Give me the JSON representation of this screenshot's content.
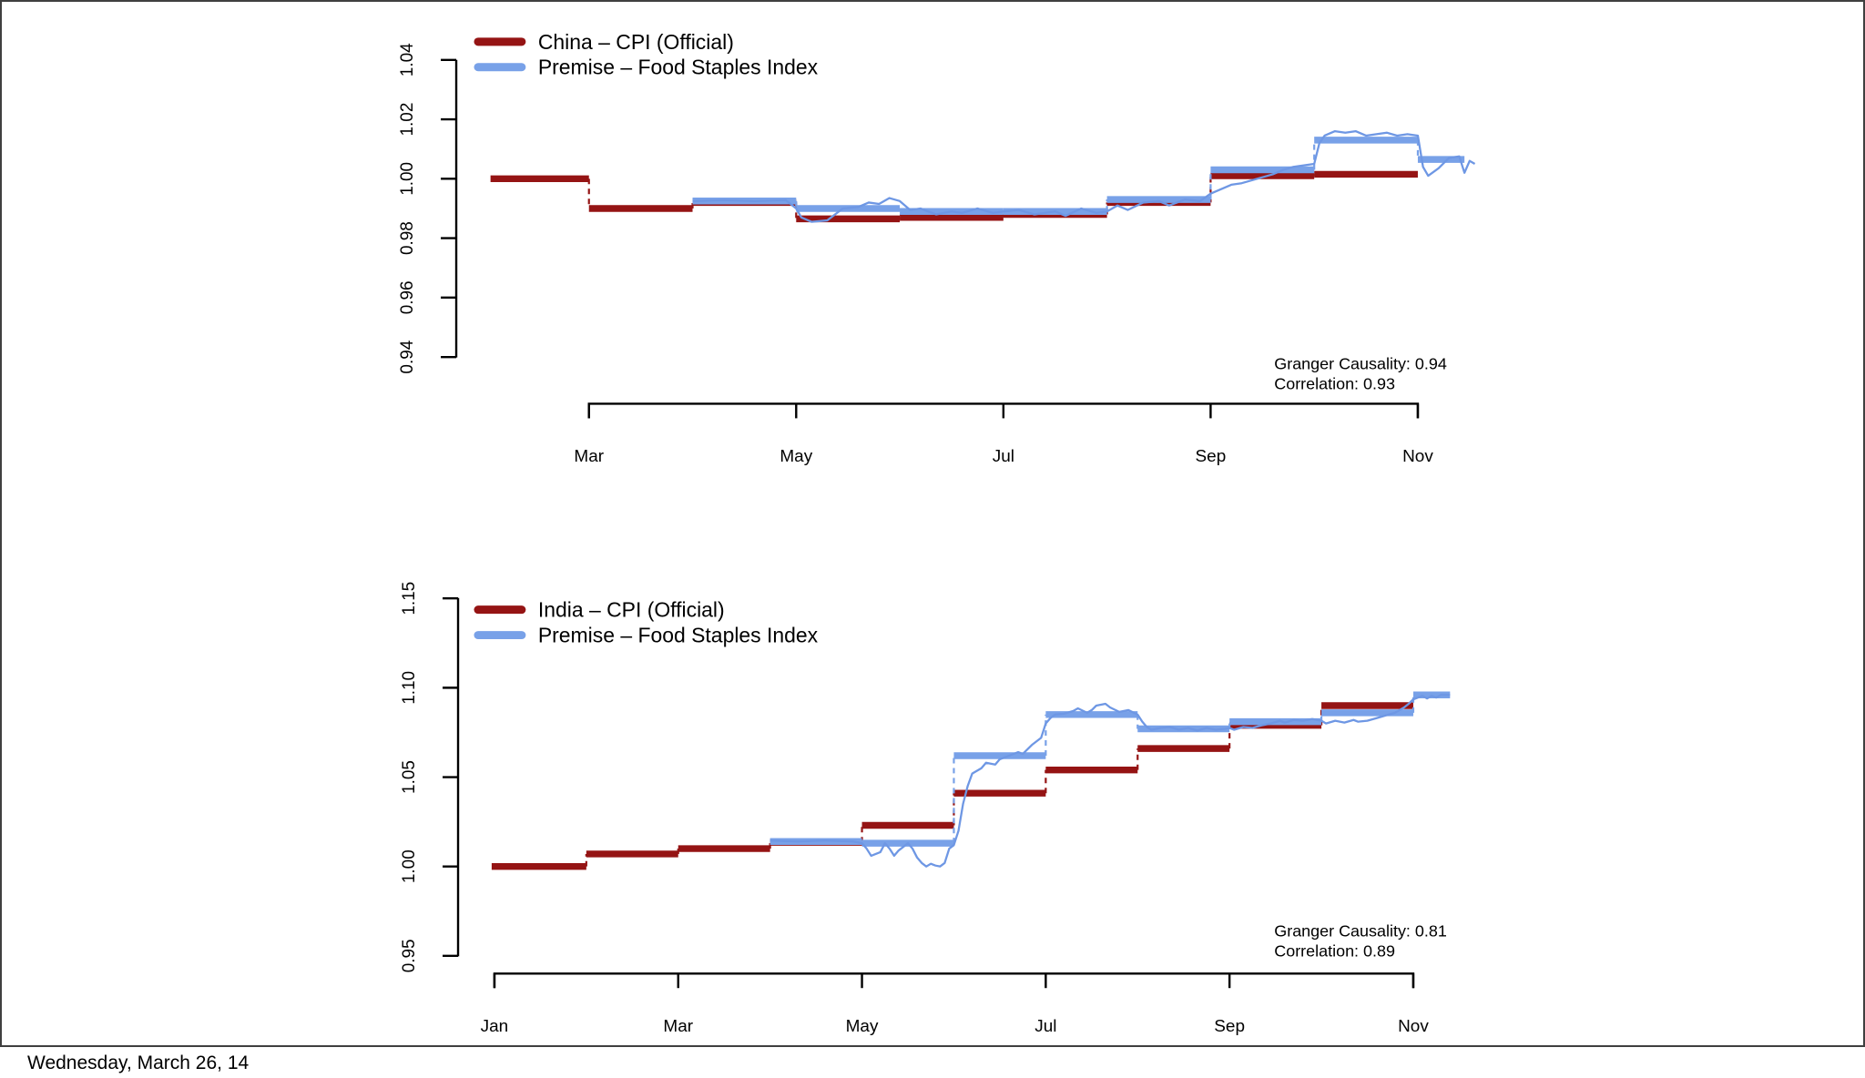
{
  "footer": {
    "date": "Wednesday, March 26, 14"
  },
  "colors": {
    "cpi_red": "#951414",
    "premise_blue": "#78A1E8",
    "premise_blue_thin": "#6E97E4"
  },
  "charts": [
    {
      "name": "china",
      "legend": [
        {
          "label": "China – CPI (Official)",
          "color": "#951414"
        },
        {
          "label": "Premise – Food Staples Index",
          "color": "#78A1E8"
        }
      ],
      "annotations": [
        "Granger Causality: 0.94",
        "Correlation: 0.93"
      ],
      "chart_data": {
        "type": "line",
        "title": "China – CPI (Official) vs Premise – Food Staples Index",
        "x_unit": "month (Jan=1)",
        "x_tick_labels": [
          "Mar",
          "May",
          "Jul",
          "Sep",
          "Nov"
        ],
        "x_tick_months": [
          3,
          5,
          7,
          9,
          11
        ],
        "ylim": [
          0.94,
          1.04
        ],
        "y_ticks": [
          1.04,
          1.02,
          1.0,
          0.98,
          0.96,
          0.94
        ],
        "y_tick_labels": [
          "1.04",
          "1.02",
          "1.00",
          "0.98",
          "0.96",
          "0.94"
        ],
        "grid": false,
        "legend_position": "top-left",
        "stats": {
          "granger_causality": 0.94,
          "correlation": 0.93
        },
        "series": [
          {
            "id": "china-cpi-monthly",
            "name": "China – CPI (Official)",
            "render": "steps",
            "color": "#951414",
            "segments": [
              [
                2.05,
                3,
                1.0
              ],
              [
                3,
                4,
                0.99
              ],
              [
                4,
                5,
                0.992
              ],
              [
                5,
                6,
                0.9865
              ],
              [
                6,
                7,
                0.987
              ],
              [
                7,
                8,
                0.988
              ],
              [
                8,
                9,
                0.992
              ],
              [
                9,
                10,
                1.001
              ],
              [
                10,
                11,
                1.0015
              ]
            ]
          },
          {
            "id": "premise-monthly",
            "name": "Premise – Food Staples Index (monthly)",
            "render": "steps",
            "color": "#78A1E8",
            "segments": [
              [
                4,
                5,
                0.9925
              ],
              [
                5,
                6,
                0.99
              ],
              [
                6,
                7,
                0.989
              ],
              [
                7,
                8,
                0.989
              ],
              [
                8,
                9,
                0.993
              ],
              [
                9,
                10,
                1.003
              ],
              [
                10,
                11,
                1.013
              ],
              [
                11,
                11.45,
                1.0065
              ]
            ]
          },
          {
            "id": "premise-daily",
            "name": "Premise – Food Staples Index (daily)",
            "render": "line",
            "color": "#6E97E4",
            "points": [
              [
                4.0,
                0.9925
              ],
              [
                4.3,
                0.9928
              ],
              [
                4.6,
                0.9925
              ],
              [
                4.9,
                0.9928
              ],
              [
                5.0,
                0.99
              ],
              [
                5.05,
                0.987
              ],
              [
                5.15,
                0.9855
              ],
              [
                5.3,
                0.986
              ],
              [
                5.45,
                0.99
              ],
              [
                5.6,
                0.9905
              ],
              [
                5.7,
                0.992
              ],
              [
                5.8,
                0.9915
              ],
              [
                5.9,
                0.9935
              ],
              [
                6.0,
                0.9925
              ],
              [
                6.1,
                0.9895
              ],
              [
                6.2,
                0.99
              ],
              [
                6.35,
                0.988
              ],
              [
                6.5,
                0.989
              ],
              [
                6.6,
                0.9885
              ],
              [
                6.75,
                0.99
              ],
              [
                6.9,
                0.9885
              ],
              [
                7.0,
                0.989
              ],
              [
                7.15,
                0.9895
              ],
              [
                7.3,
                0.988
              ],
              [
                7.5,
                0.989
              ],
              [
                7.6,
                0.9875
              ],
              [
                7.75,
                0.99
              ],
              [
                7.9,
                0.9885
              ],
              [
                8.0,
                0.989
              ],
              [
                8.1,
                0.991
              ],
              [
                8.2,
                0.9895
              ],
              [
                8.35,
                0.992
              ],
              [
                8.5,
                0.9925
              ],
              [
                8.6,
                0.991
              ],
              [
                8.75,
                0.993
              ],
              [
                8.9,
                0.9925
              ],
              [
                9.0,
                0.995
              ],
              [
                9.1,
                0.9965
              ],
              [
                9.2,
                0.998
              ],
              [
                9.3,
                0.9985
              ],
              [
                9.45,
                1.0
              ],
              [
                9.6,
                1.0015
              ],
              [
                9.7,
                1.003
              ],
              [
                9.8,
                1.004
              ],
              [
                9.9,
                1.0045
              ],
              [
                10.0,
                1.005
              ],
              [
                10.05,
                1.012
              ],
              [
                10.1,
                1.0145
              ],
              [
                10.2,
                1.016
              ],
              [
                10.3,
                1.0155
              ],
              [
                10.4,
                1.016
              ],
              [
                10.5,
                1.0145
              ],
              [
                10.6,
                1.015
              ],
              [
                10.7,
                1.0155
              ],
              [
                10.8,
                1.0145
              ],
              [
                10.9,
                1.015
              ],
              [
                11.0,
                1.0145
              ],
              [
                11.05,
                1.004
              ],
              [
                11.1,
                1.001
              ],
              [
                11.2,
                1.0035
              ],
              [
                11.3,
                1.007
              ],
              [
                11.4,
                1.0075
              ],
              [
                11.45,
                1.002
              ],
              [
                11.5,
                1.006
              ],
              [
                11.55,
                1.005
              ]
            ]
          }
        ]
      }
    },
    {
      "name": "india",
      "legend": [
        {
          "label": "India – CPI (Official)",
          "color": "#951414"
        },
        {
          "label": "Premise – Food Staples Index",
          "color": "#78A1E8"
        }
      ],
      "annotations": [
        "Granger Causality: 0.81",
        "Correlation: 0.89"
      ],
      "chart_data": {
        "type": "line",
        "title": "India – CPI (Official) vs Premise – Food Staples Index",
        "x_unit": "month (Jan=1)",
        "x_tick_labels": [
          "Jan",
          "Mar",
          "May",
          "Jul",
          "Sep",
          "Nov"
        ],
        "x_tick_months": [
          1,
          3,
          5,
          7,
          9,
          11
        ],
        "ylim": [
          0.95,
          1.15
        ],
        "y_ticks": [
          1.15,
          1.1,
          1.05,
          1.0,
          0.95
        ],
        "y_tick_labels": [
          "1.15",
          "1.10",
          "1.05",
          "1.00",
          "0.95"
        ],
        "grid": false,
        "legend_position": "top-left",
        "stats": {
          "granger_causality": 0.81,
          "correlation": 0.89
        },
        "series": [
          {
            "id": "india-cpi-monthly",
            "name": "India – CPI (Official)",
            "render": "steps",
            "color": "#951414",
            "segments": [
              [
                0.97,
                2,
                1.0
              ],
              [
                2,
                3,
                1.007
              ],
              [
                3,
                4,
                1.01
              ],
              [
                4,
                5,
                1.0135
              ],
              [
                5,
                6,
                1.023
              ],
              [
                6,
                7,
                1.041
              ],
              [
                7,
                8,
                1.054
              ],
              [
                8,
                9,
                1.066
              ],
              [
                9,
                10,
                1.079
              ],
              [
                10,
                11,
                1.09
              ]
            ]
          },
          {
            "id": "premise-monthly",
            "name": "Premise – Food Staples Index (monthly)",
            "render": "steps",
            "color": "#78A1E8",
            "segments": [
              [
                4,
                5,
                1.014
              ],
              [
                5,
                6,
                1.013
              ],
              [
                6,
                7,
                1.062
              ],
              [
                7,
                8,
                1.085
              ],
              [
                8,
                9,
                1.077
              ],
              [
                9,
                10,
                1.081
              ],
              [
                10,
                11,
                1.086
              ],
              [
                11,
                11.4,
                1.096
              ]
            ]
          },
          {
            "id": "premise-daily",
            "name": "Premise – Food Staples Index (daily)",
            "render": "line",
            "color": "#6E97E4",
            "points": [
              [
                4.0,
                1.0145
              ],
              [
                4.3,
                1.014
              ],
              [
                4.6,
                1.0145
              ],
              [
                4.9,
                1.014
              ],
              [
                5.0,
                1.013
              ],
              [
                5.05,
                1.01
              ],
              [
                5.1,
                1.006
              ],
              [
                5.2,
                1.008
              ],
              [
                5.25,
                1.013
              ],
              [
                5.3,
                1.01
              ],
              [
                5.35,
                1.006
              ],
              [
                5.4,
                1.009
              ],
              [
                5.5,
                1.013
              ],
              [
                5.55,
                1.01
              ],
              [
                5.6,
                1.005
              ],
              [
                5.65,
                1.002
              ],
              [
                5.7,
                1.0
              ],
              [
                5.75,
                1.0015
              ],
              [
                5.8,
                1.0005
              ],
              [
                5.85,
                1.0
              ],
              [
                5.9,
                1.002
              ],
              [
                5.95,
                1.01
              ],
              [
                6.0,
                1.012
              ],
              [
                6.05,
                1.02
              ],
              [
                6.1,
                1.035
              ],
              [
                6.15,
                1.045
              ],
              [
                6.2,
                1.052
              ],
              [
                6.3,
                1.055
              ],
              [
                6.35,
                1.058
              ],
              [
                6.45,
                1.057
              ],
              [
                6.5,
                1.06
              ],
              [
                6.6,
                1.062
              ],
              [
                6.7,
                1.064
              ],
              [
                6.75,
                1.063
              ],
              [
                6.85,
                1.068
              ],
              [
                6.95,
                1.072
              ],
              [
                7.0,
                1.08
              ],
              [
                7.05,
                1.083
              ],
              [
                7.1,
                1.085
              ],
              [
                7.2,
                1.0855
              ],
              [
                7.3,
                1.087
              ],
              [
                7.35,
                1.0885
              ],
              [
                7.45,
                1.086
              ],
              [
                7.5,
                1.0875
              ],
              [
                7.55,
                1.09
              ],
              [
                7.65,
                1.091
              ],
              [
                7.7,
                1.089
              ],
              [
                7.8,
                1.0865
              ],
              [
                7.9,
                1.0875
              ],
              [
                8.0,
                1.085
              ],
              [
                8.05,
                1.081
              ],
              [
                8.1,
                1.078
              ],
              [
                8.15,
                1.0765
              ],
              [
                8.25,
                1.0775
              ],
              [
                8.35,
                1.078
              ],
              [
                8.45,
                1.0765
              ],
              [
                8.55,
                1.0775
              ],
              [
                8.65,
                1.076
              ],
              [
                8.75,
                1.0775
              ],
              [
                8.85,
                1.0765
              ],
              [
                8.95,
                1.077
              ],
              [
                9.0,
                1.0775
              ],
              [
                9.05,
                1.0765
              ],
              [
                9.15,
                1.078
              ],
              [
                9.25,
                1.0775
              ],
              [
                9.35,
                1.079
              ],
              [
                9.45,
                1.08
              ],
              [
                9.55,
                1.0815
              ],
              [
                9.6,
                1.0805
              ],
              [
                9.7,
                1.082
              ],
              [
                9.8,
                1.0815
              ],
              [
                9.9,
                1.0825
              ],
              [
                10.0,
                1.0815
              ],
              [
                10.05,
                1.08
              ],
              [
                10.15,
                1.0815
              ],
              [
                10.25,
                1.0805
              ],
              [
                10.35,
                1.082
              ],
              [
                10.4,
                1.081
              ],
              [
                10.5,
                1.0815
              ],
              [
                10.6,
                1.083
              ],
              [
                10.7,
                1.0845
              ],
              [
                10.8,
                1.086
              ],
              [
                10.9,
                1.089
              ],
              [
                10.95,
                1.091
              ],
              [
                11.0,
                1.0935
              ],
              [
                11.1,
                1.0955
              ],
              [
                11.15,
                1.094
              ],
              [
                11.2,
                1.0955
              ],
              [
                11.25,
                1.0945
              ],
              [
                11.3,
                1.096
              ],
              [
                11.4,
                1.096
              ]
            ]
          }
        ]
      }
    }
  ]
}
